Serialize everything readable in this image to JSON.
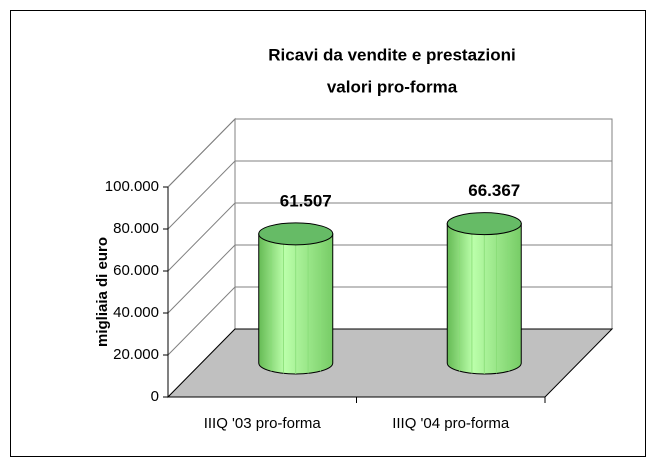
{
  "chart_data": {
    "type": "bar3d",
    "title": "Ricavi da vendite e prestazioni",
    "subtitle": "valori pro-forma",
    "ylabel": "migliaia di euro",
    "categories": [
      "IIIQ '03 pro-forma",
      "IIIQ '04 pro-forma"
    ],
    "values": [
      61507,
      66367
    ],
    "value_labels": [
      "61.507",
      "66.367"
    ],
    "color": "#99ee88",
    "ylim": [
      0,
      100000
    ],
    "yticks": [
      0,
      {
        "value": 20000,
        "label": "20.000"
      },
      {
        "value": 40000,
        "label": "40.000"
      },
      {
        "value": 60000,
        "label": "60.000"
      },
      {
        "value": 80000,
        "label": "80.000"
      },
      {
        "value": 100000,
        "label": "100.000"
      }
    ],
    "grid": true
  }
}
